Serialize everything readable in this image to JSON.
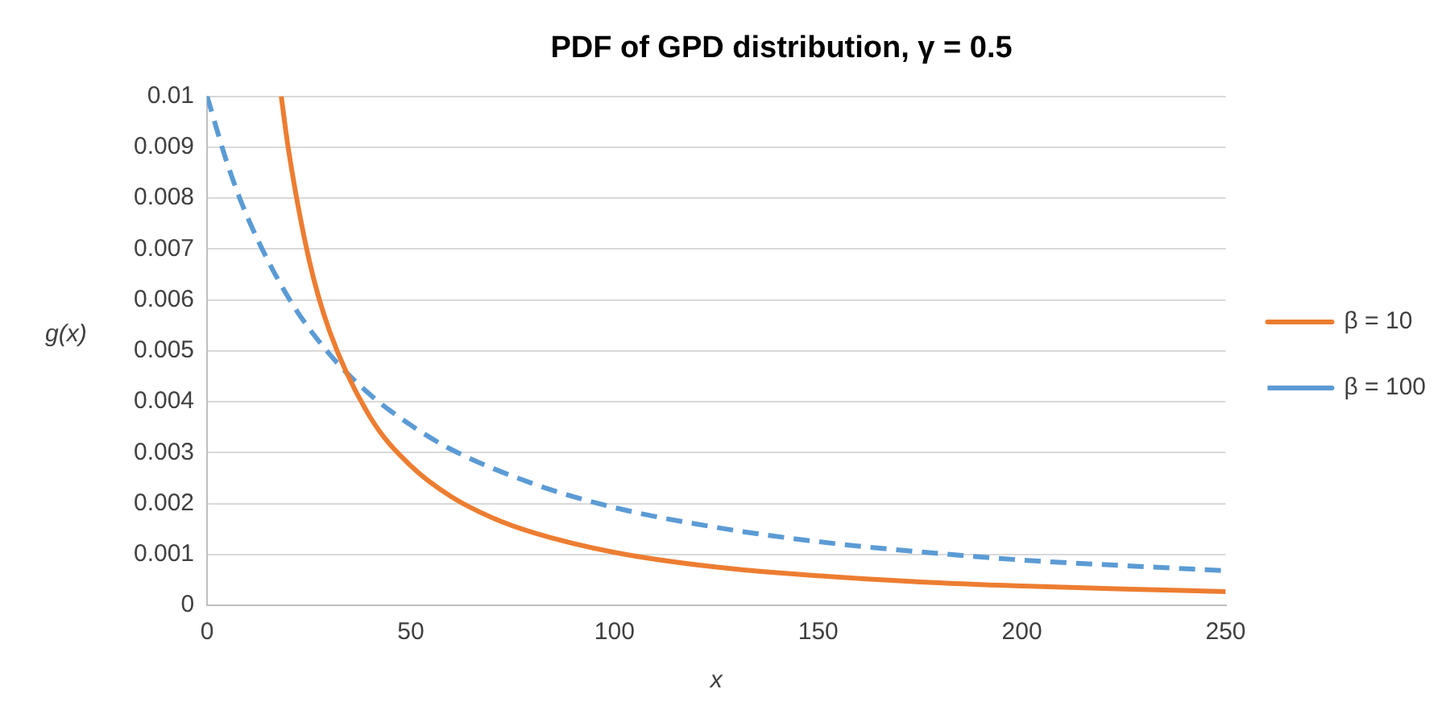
{
  "chart_data": {
    "type": "line",
    "title": "PDF of GPD distribution, γ = 0.5",
    "xlabel": "x",
    "ylabel": "g(x)",
    "xlim": [
      0,
      250
    ],
    "xticks": [
      0,
      50,
      100,
      150,
      200,
      250
    ],
    "ylim": [
      0,
      0.01
    ],
    "yticks": [
      0,
      0.001,
      0.002,
      0.003,
      0.004,
      0.005,
      0.006,
      0.007,
      0.008,
      0.009,
      0.01
    ],
    "grid": "y",
    "legend": "right",
    "marker": "none",
    "series": [
      {
        "name": "β = 10",
        "color": "#ed7d31",
        "line_style": "solid",
        "x": [
          18.2,
          20,
          25,
          30,
          40,
          50,
          60,
          70,
          80,
          100,
          125,
          150,
          175,
          200,
          225,
          250
        ],
        "values": [
          0.01,
          0.00894,
          0.0068,
          0.0054,
          0.0037,
          0.00274,
          0.00213,
          0.00172,
          0.00143,
          0.00104,
          0.00075,
          0.00058,
          0.00046,
          0.00038,
          0.00032,
          0.00027
        ]
      },
      {
        "name": "β = 100",
        "color": "#5b9bd5",
        "line_style": "dashed",
        "x": [
          0,
          5,
          10,
          20,
          30,
          40,
          50,
          60,
          80,
          100,
          125,
          150,
          175,
          200,
          225,
          250
        ],
        "values": [
          0.01,
          0.00867,
          0.00761,
          0.00604,
          0.00494,
          0.00414,
          0.00354,
          0.00306,
          0.00239,
          0.00192,
          0.00153,
          0.00125,
          0.00105,
          0.00089,
          0.00078,
          0.00068
        ]
      }
    ]
  }
}
